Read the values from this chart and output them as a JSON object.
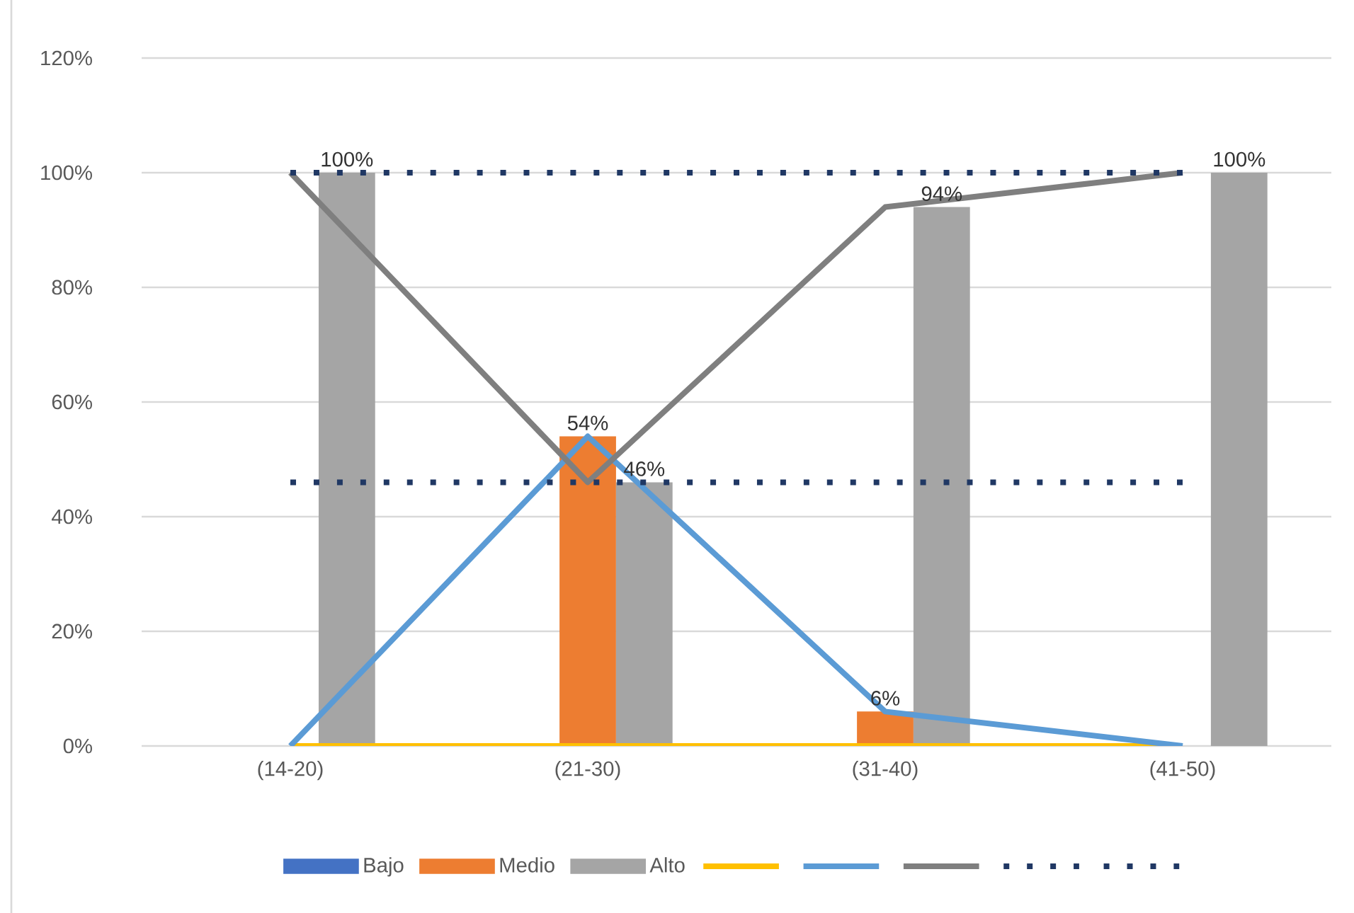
{
  "chart_data": {
    "type": "bar",
    "categories": [
      "(14-20)",
      "(21-30)",
      "(31-40)",
      "(41-50)"
    ],
    "series": [
      {
        "name": "Bajo",
        "color": "#4472c4",
        "values": [
          0,
          0,
          0,
          0
        ]
      },
      {
        "name": "Medio",
        "color": "#ed7d31",
        "values": [
          0,
          54,
          6,
          0
        ],
        "value_labels": [
          null,
          "54%",
          "6%",
          null
        ]
      },
      {
        "name": "Alto",
        "color": "#a5a5a5",
        "values": [
          100,
          46,
          94,
          100
        ],
        "value_labels": [
          "100%",
          "46%",
          "94%",
          "100%"
        ]
      },
      {
        "type": "line",
        "color": "#ffc000",
        "values": [
          0,
          0,
          0,
          0
        ],
        "line_style": "solid"
      },
      {
        "type": "line",
        "color": "#5b9bd5",
        "values": [
          0,
          54,
          6,
          0
        ],
        "line_style": "solid"
      },
      {
        "type": "line",
        "color": "#7f7f7f",
        "values": [
          100,
          46,
          94,
          100
        ],
        "line_style": "solid"
      },
      {
        "type": "line",
        "color": "#203864",
        "values": [
          100,
          100,
          100,
          100
        ],
        "line_style": "dotted"
      },
      {
        "type": "line",
        "color": "#203864",
        "values": [
          46,
          46,
          46,
          46
        ],
        "line_style": "dotted"
      }
    ],
    "ylim": [
      0,
      120
    ],
    "yticks": [
      {
        "value": 0,
        "label": "0%"
      },
      {
        "value": 20,
        "label": "20%"
      },
      {
        "value": 40,
        "label": "40%"
      },
      {
        "value": 60,
        "label": "60%"
      },
      {
        "value": 80,
        "label": "80%"
      },
      {
        "value": 100,
        "label": "100%"
      },
      {
        "value": 120,
        "label": "120%"
      }
    ],
    "grid": "y",
    "legend": "bottom"
  }
}
